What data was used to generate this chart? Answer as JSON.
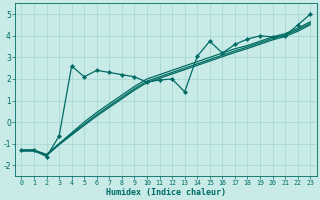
{
  "xlabel": "Humidex (Indice chaleur)",
  "bg_color": "#c8ebe8",
  "line_color": "#006b63",
  "grid_color": "#a8d8d4",
  "xlim": [
    -0.5,
    23.5
  ],
  "ylim": [
    -2.5,
    5.5
  ],
  "xticks": [
    0,
    1,
    2,
    3,
    4,
    5,
    6,
    7,
    8,
    9,
    10,
    11,
    12,
    13,
    14,
    15,
    16,
    17,
    18,
    19,
    20,
    21,
    22,
    23
  ],
  "yticks": [
    -2,
    -1,
    0,
    1,
    2,
    3,
    4,
    5
  ],
  "main_x": [
    0,
    1,
    2,
    3,
    4,
    5,
    6,
    7,
    8,
    9,
    10,
    11,
    12,
    13,
    14,
    15,
    16,
    17,
    18,
    19,
    20,
    21,
    22,
    23
  ],
  "main_y": [
    -1.3,
    -1.3,
    -1.6,
    -0.65,
    2.6,
    2.1,
    2.4,
    2.3,
    2.2,
    2.1,
    1.85,
    1.95,
    2.0,
    1.4,
    3.05,
    3.75,
    3.2,
    3.6,
    3.85,
    4.0,
    3.95,
    4.0,
    4.5,
    5.0
  ],
  "band_lines": [
    [
      -1.3,
      -1.3,
      -1.5,
      -1.0,
      -0.5,
      0.0,
      0.45,
      0.85,
      1.25,
      1.65,
      2.0,
      2.2,
      2.4,
      2.6,
      2.8,
      3.0,
      3.2,
      3.4,
      3.55,
      3.75,
      3.95,
      4.1,
      4.35,
      4.65
    ],
    [
      -1.3,
      -1.3,
      -1.52,
      -1.02,
      -0.55,
      -0.1,
      0.35,
      0.75,
      1.15,
      1.55,
      1.9,
      2.1,
      2.3,
      2.5,
      2.7,
      2.9,
      3.1,
      3.3,
      3.48,
      3.68,
      3.88,
      4.03,
      4.28,
      4.58
    ],
    [
      -1.35,
      -1.35,
      -1.56,
      -1.05,
      -0.6,
      -0.15,
      0.28,
      0.68,
      1.08,
      1.48,
      1.83,
      2.03,
      2.23,
      2.43,
      2.63,
      2.83,
      3.03,
      3.23,
      3.41,
      3.61,
      3.81,
      3.97,
      4.21,
      4.51
    ]
  ]
}
